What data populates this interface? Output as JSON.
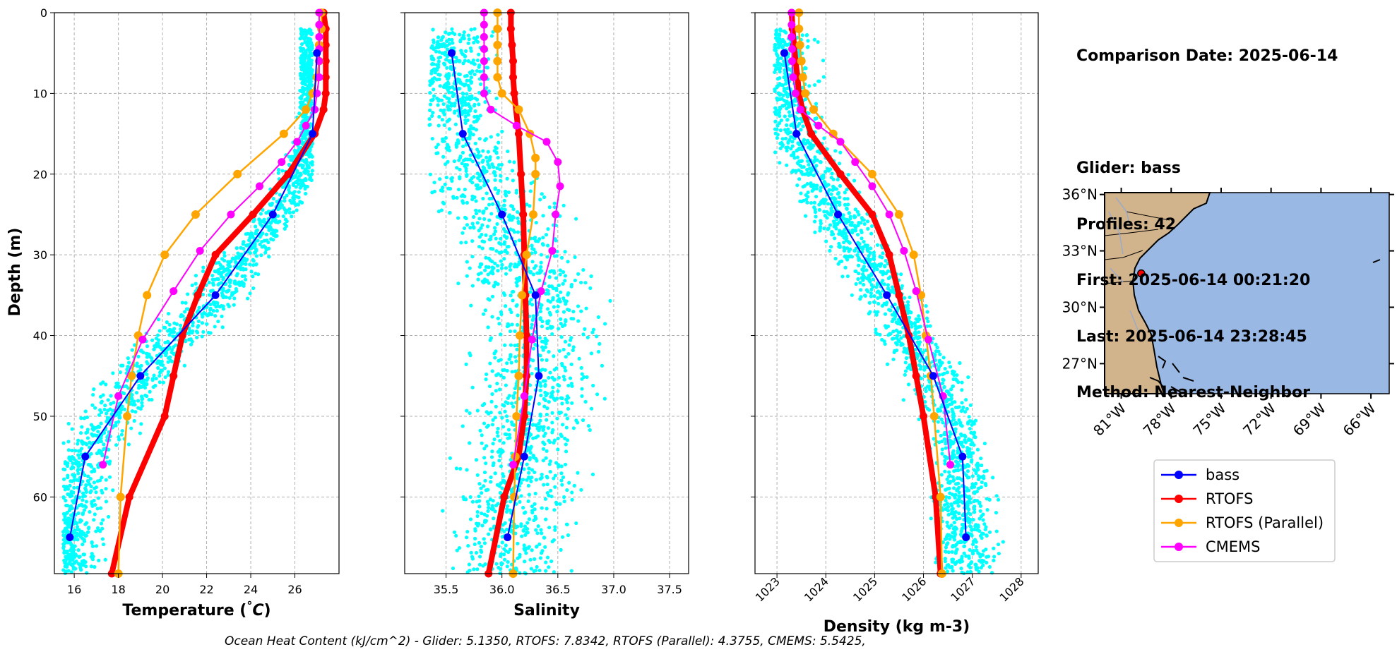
{
  "info": {
    "comparison_date": "Comparison Date: 2025-06-14",
    "glider": "Glider: bass",
    "profiles": "Profiles: 42",
    "first": "First: 2025-06-14 00:21:20",
    "last": "Last: 2025-06-14 23:28:45",
    "method": "Method: Nearest-Neighbor"
  },
  "footer_text": "Ocean Heat Content (kJ/cm^2) - Glider: 5.1350,  RTOFS: 7.8342,  RTOFS (Parallel): 4.3755,  CMEMS: 5.5425,",
  "colors": {
    "glider": "#0000ff",
    "rtofs": "#ff0000",
    "rtofs_parallel": "#ffa500",
    "cmems": "#ff00ff",
    "scatter": "#00ffff",
    "ocean": "#9ab8e4",
    "land": "#d2b48c"
  },
  "chart_data": [
    {
      "type": "line",
      "title": "",
      "xlabel": "Temperature (°C)",
      "ylabel": "Depth (m)",
      "xlim": [
        15.1,
        28.0
      ],
      "ylim": [
        69.5,
        0
      ],
      "xticks": [
        16,
        18,
        20,
        22,
        24,
        26
      ],
      "yticks": [
        0,
        10,
        20,
        30,
        40,
        50,
        60
      ],
      "grid": true,
      "scatter_cloud": {
        "name": "glider profiles",
        "x_range": [
          15.5,
          26.8
        ],
        "depth_range": [
          2,
          69.5
        ]
      },
      "series": [
        {
          "name": "bass",
          "depth": [
            5,
            15,
            25,
            35,
            45,
            55,
            65
          ],
          "values": [
            27.0,
            26.8,
            25.0,
            22.4,
            19.0,
            16.5,
            15.8
          ]
        },
        {
          "name": "RTOFS",
          "depth": [
            0,
            2,
            4,
            6,
            8,
            10,
            12,
            15,
            20,
            25,
            30,
            35,
            40,
            45,
            50,
            60,
            69.5
          ],
          "values": [
            27.3,
            27.4,
            27.4,
            27.4,
            27.4,
            27.4,
            27.3,
            26.9,
            25.7,
            24.1,
            22.4,
            21.6,
            20.9,
            20.5,
            20.1,
            18.5,
            17.7
          ]
        },
        {
          "name": "RTOFS (Parallel)",
          "depth": [
            0,
            2,
            4,
            6,
            8,
            10,
            12,
            15,
            20,
            25,
            30,
            35,
            40,
            45,
            50,
            60,
            69.5
          ],
          "values": [
            27.2,
            27.2,
            27.1,
            27.1,
            27.0,
            26.8,
            26.5,
            25.5,
            23.4,
            21.5,
            20.1,
            19.3,
            18.9,
            18.6,
            18.4,
            18.1,
            18.0
          ]
        },
        {
          "name": "CMEMS",
          "depth": [
            0,
            1.5,
            3,
            4.5,
            6,
            8,
            10,
            12,
            14,
            16,
            18.5,
            21.5,
            25,
            29.5,
            34.5,
            40.5,
            47.5,
            56
          ],
          "values": [
            27.1,
            27.1,
            27.1,
            27.1,
            27.1,
            27.1,
            27.0,
            26.9,
            26.5,
            26.1,
            25.4,
            24.4,
            23.1,
            21.7,
            20.5,
            19.1,
            18.0,
            17.3
          ]
        }
      ]
    },
    {
      "type": "line",
      "title": "",
      "xlabel": "Salinity",
      "ylabel": "",
      "xlim": [
        35.13,
        37.67
      ],
      "ylim": [
        69.5,
        0
      ],
      "xticks": [
        35.5,
        36.0,
        36.5,
        37.0,
        37.5
      ],
      "xtick_labels": [
        "35.5",
        "36.0",
        "36.5",
        "37.0",
        "37.5"
      ],
      "grid": true,
      "scatter_cloud": {
        "name": "glider profiles",
        "x_range": [
          35.35,
          37.35
        ],
        "depth_range": [
          2,
          69.5
        ]
      },
      "series": [
        {
          "name": "bass",
          "depth": [
            5,
            15,
            25,
            35,
            45,
            55,
            65
          ],
          "values": [
            35.55,
            35.65,
            36.0,
            36.3,
            36.33,
            36.2,
            36.05
          ]
        },
        {
          "name": "RTOFS",
          "depth": [
            0,
            2,
            4,
            6,
            8,
            10,
            15,
            20,
            25,
            30,
            35,
            40,
            45,
            50,
            55,
            60,
            69.5
          ],
          "values": [
            36.08,
            36.08,
            36.09,
            36.1,
            36.1,
            36.11,
            36.15,
            36.17,
            36.19,
            36.2,
            36.21,
            36.22,
            36.22,
            36.2,
            36.15,
            36.02,
            35.88
          ]
        },
        {
          "name": "RTOFS (Parallel)",
          "depth": [
            0,
            2,
            4,
            6,
            8,
            10,
            12,
            15,
            18,
            20,
            25,
            30,
            35,
            40,
            45,
            50,
            55,
            60,
            69.5
          ],
          "values": [
            35.96,
            35.96,
            35.96,
            35.96,
            35.96,
            36.0,
            36.15,
            36.25,
            36.3,
            36.3,
            36.28,
            36.22,
            36.18,
            36.16,
            36.15,
            36.13,
            36.12,
            36.11,
            36.1
          ]
        },
        {
          "name": "CMEMS",
          "depth": [
            0,
            1.5,
            3,
            4.5,
            6,
            8,
            10,
            12,
            14,
            16,
            18.5,
            21.5,
            25,
            29.5,
            34.5,
            40.5,
            47.5,
            56
          ],
          "values": [
            35.84,
            35.84,
            35.84,
            35.84,
            35.84,
            35.84,
            35.84,
            35.9,
            36.13,
            36.4,
            36.5,
            36.52,
            36.48,
            36.45,
            36.35,
            36.27,
            36.2,
            36.1
          ]
        }
      ]
    },
    {
      "type": "line",
      "title": "",
      "xlabel": "Density (kg m-3)",
      "ylabel": "",
      "xlim": [
        1022.55,
        1028.35
      ],
      "ylim": [
        69.5,
        0
      ],
      "xticks": [
        1023,
        1024,
        1025,
        1026,
        1027,
        1028
      ],
      "grid": true,
      "scatter_cloud": {
        "name": "glider profiles",
        "x_range": [
          1022.95,
          1027.85
        ],
        "depth_range": [
          2,
          69.5
        ]
      },
      "series": [
        {
          "name": "bass",
          "depth": [
            5,
            15,
            25,
            35,
            45,
            55,
            65
          ],
          "values": [
            1023.15,
            1023.4,
            1024.25,
            1025.25,
            1026.2,
            1026.8,
            1026.87
          ]
        },
        {
          "name": "RTOFS",
          "depth": [
            0,
            2,
            4,
            6,
            8,
            10,
            12,
            15,
            20,
            25,
            30,
            35,
            40,
            45,
            50,
            60,
            69.5
          ],
          "values": [
            1023.3,
            1023.32,
            1023.35,
            1023.38,
            1023.42,
            1023.45,
            1023.52,
            1023.7,
            1024.3,
            1024.95,
            1025.3,
            1025.5,
            1025.7,
            1025.85,
            1026.0,
            1026.25,
            1026.35
          ]
        },
        {
          "name": "RTOFS (Parallel)",
          "depth": [
            0,
            2,
            4,
            6,
            8,
            10,
            12,
            15,
            20,
            25,
            30,
            35,
            40,
            45,
            50,
            60,
            69.5
          ],
          "values": [
            1023.45,
            1023.45,
            1023.47,
            1023.5,
            1023.53,
            1023.58,
            1023.75,
            1024.15,
            1024.95,
            1025.5,
            1025.8,
            1025.95,
            1026.05,
            1026.15,
            1026.22,
            1026.35,
            1026.38
          ]
        },
        {
          "name": "CMEMS",
          "depth": [
            0,
            1.5,
            3,
            4.5,
            6,
            8,
            10,
            12,
            14,
            16,
            18.5,
            21.5,
            25,
            29.5,
            34.5,
            40.5,
            47.5,
            56
          ],
          "values": [
            1023.3,
            1023.3,
            1023.3,
            1023.31,
            1023.31,
            1023.33,
            1023.38,
            1023.48,
            1023.85,
            1024.3,
            1024.6,
            1024.95,
            1025.3,
            1025.6,
            1025.85,
            1026.1,
            1026.4,
            1026.55
          ]
        }
      ]
    }
  ],
  "map": {
    "lat_labels": [
      "36°N",
      "33°N",
      "30°N",
      "27°N"
    ],
    "lon_labels": [
      "81°W",
      "78°W",
      "75°W",
      "72°W",
      "69°W",
      "66°W"
    ],
    "lat_values": [
      36,
      33,
      30,
      27
    ],
    "lon_values": [
      -81,
      -78,
      -75,
      -72,
      -69,
      -66
    ],
    "extent": {
      "lon": [
        -82.0,
        -64.9
      ],
      "lat": [
        25.4,
        36.1
      ]
    },
    "glider_position": {
      "lon": -79.8,
      "lat": 31.8
    }
  },
  "legend": {
    "entries": [
      "bass",
      "RTOFS",
      "RTOFS (Parallel)",
      "CMEMS"
    ]
  }
}
